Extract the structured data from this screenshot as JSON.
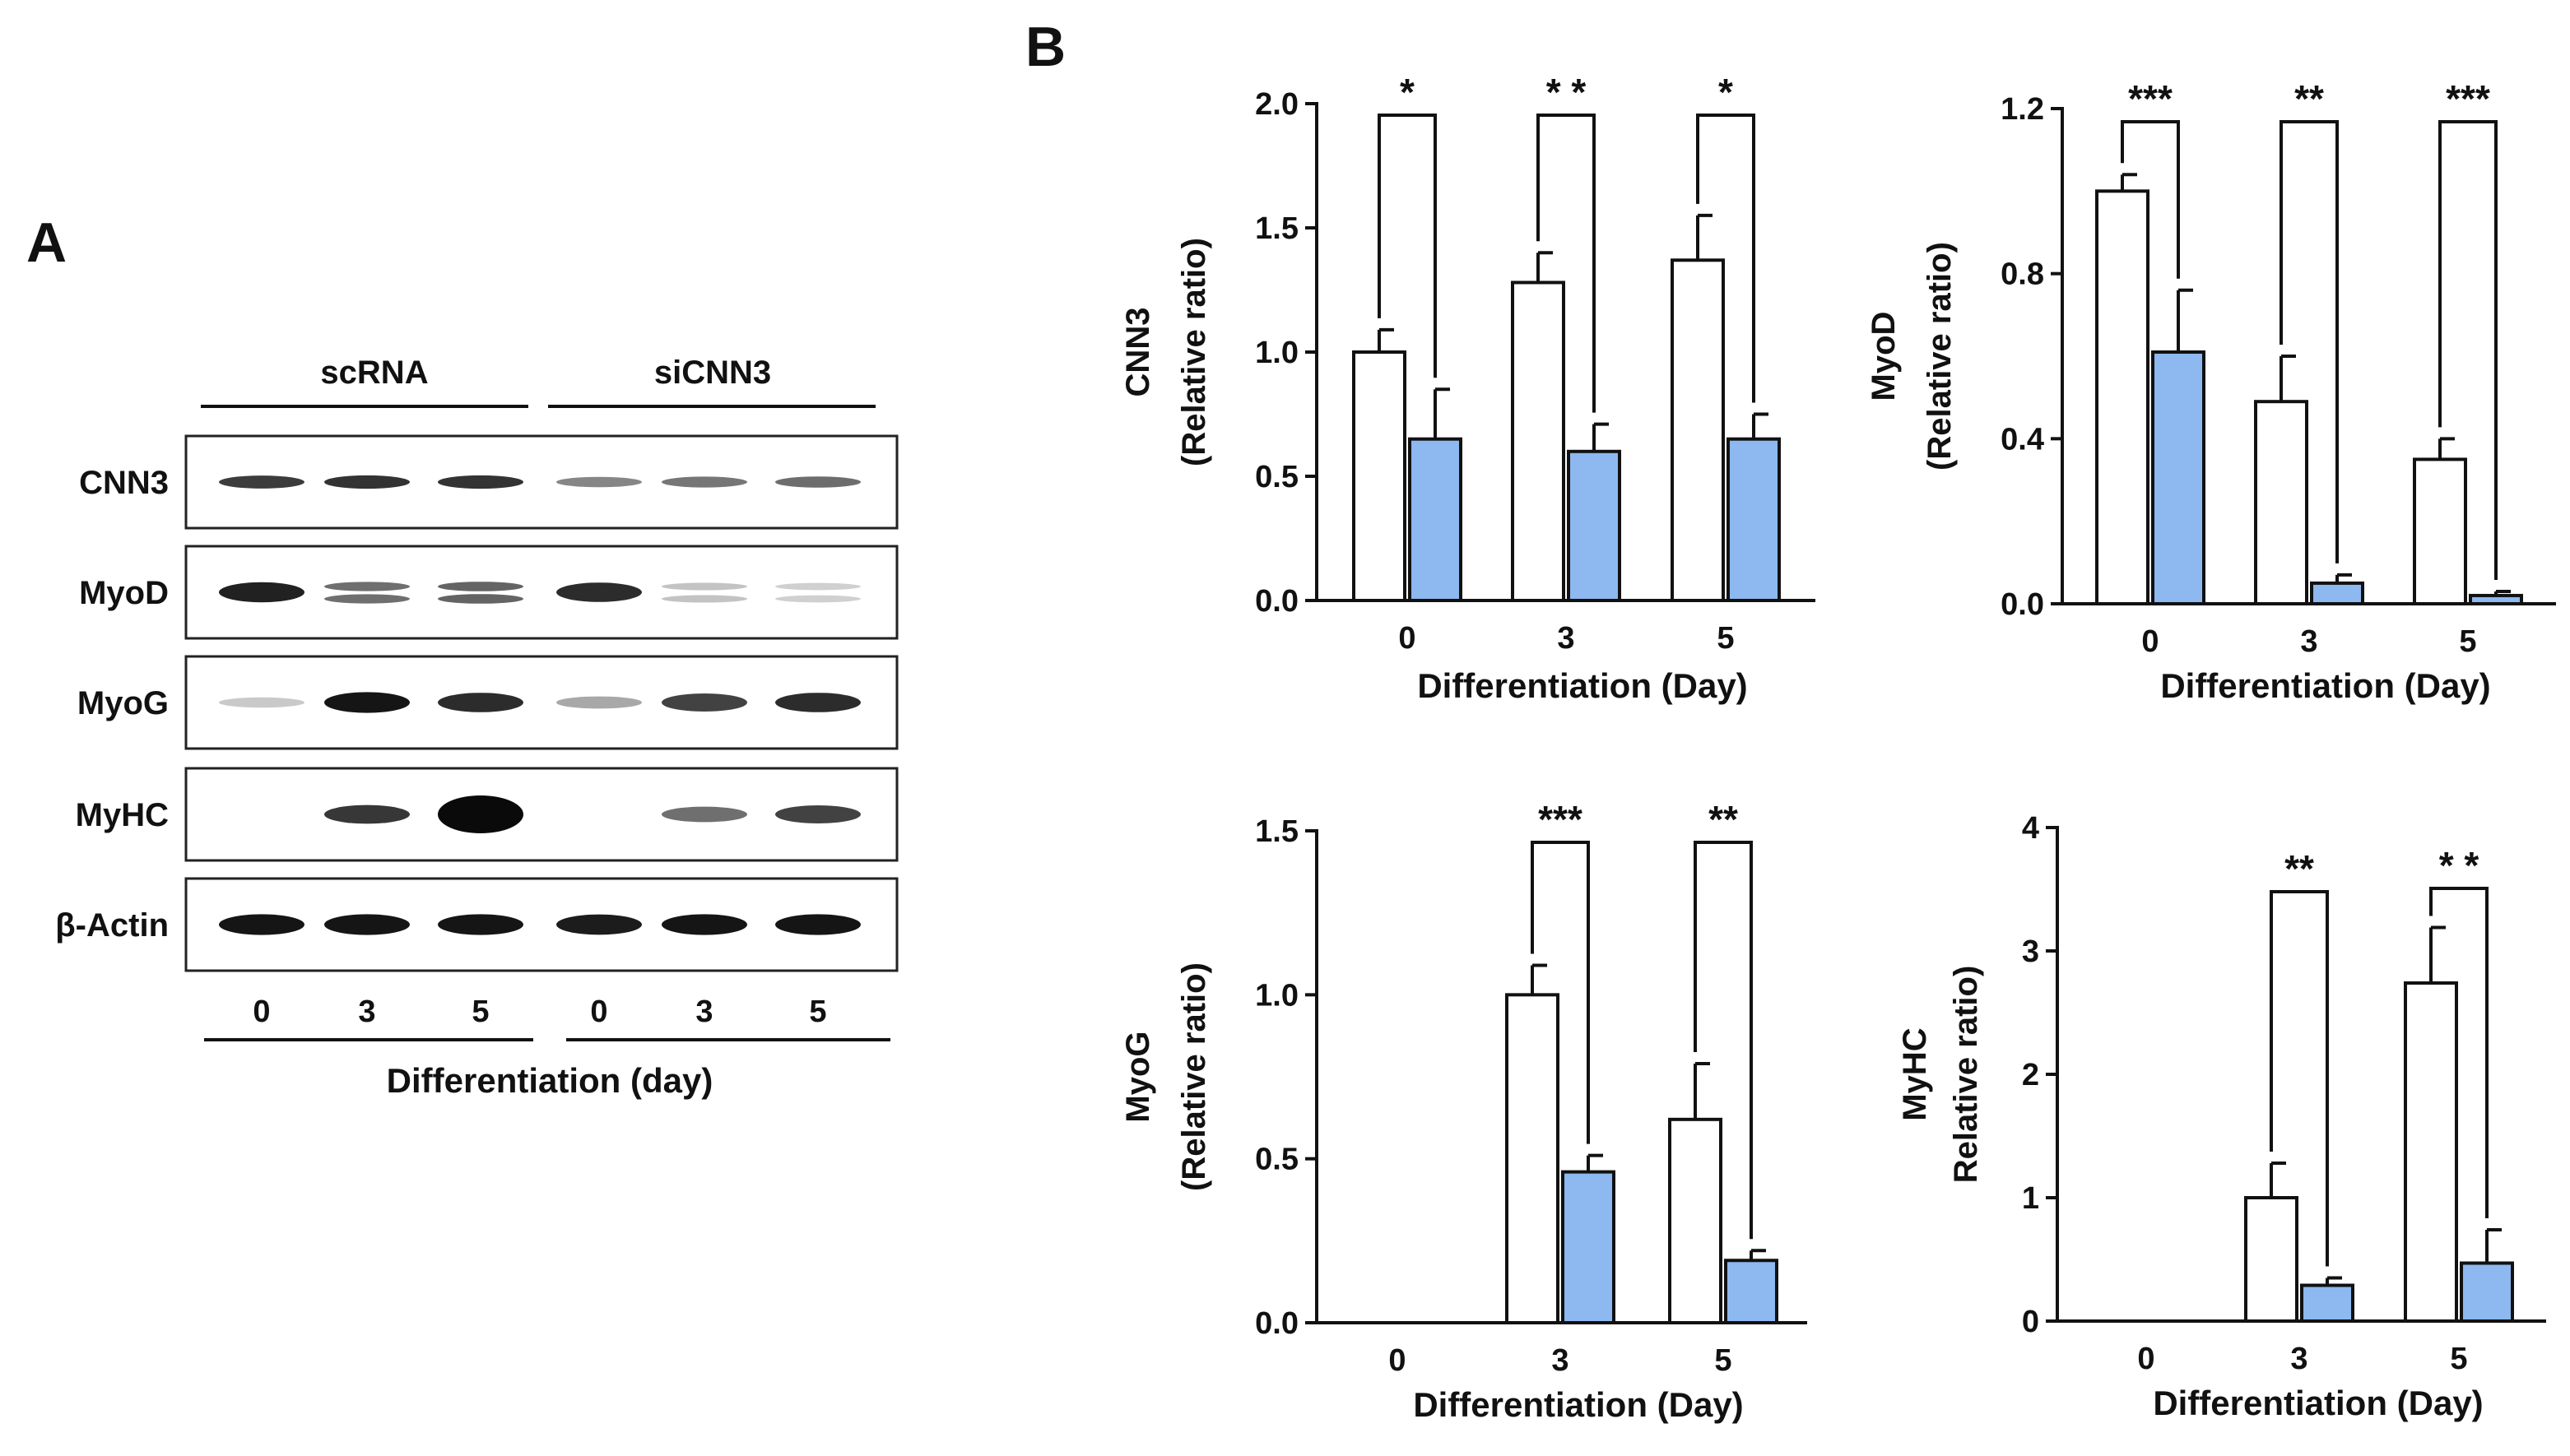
{
  "panel_a": {
    "letter": "A",
    "groups": [
      {
        "label": "scRNA"
      },
      {
        "label": "siCNN3"
      }
    ],
    "rows": [
      {
        "label": "CNN3",
        "bands": [
          0.78,
          0.82,
          0.82,
          0.45,
          0.52,
          0.56
        ],
        "shape": "thin"
      },
      {
        "label": "MyoD",
        "bands": [
          0.9,
          0.55,
          0.6,
          0.85,
          0.18,
          0.12
        ],
        "shape": "doublet"
      },
      {
        "label": "MyoG",
        "bands": [
          0.15,
          0.95,
          0.85,
          0.3,
          0.75,
          0.85
        ],
        "shape": "normal"
      },
      {
        "label": "MyHC",
        "bands": [
          0.0,
          0.8,
          1.0,
          0.0,
          0.55,
          0.75
        ],
        "shape": "normal"
      },
      {
        "label": "β-Actin",
        "bands": [
          0.95,
          0.95,
          0.95,
          0.92,
          0.95,
          0.95
        ],
        "shape": "normal"
      }
    ],
    "lanes": [
      "0",
      "3",
      "5",
      "0",
      "3",
      "5"
    ],
    "xlabel": "Differentiation (day)"
  },
  "panel_b": {
    "letter": "B"
  },
  "chart_data": [
    {
      "type": "bar",
      "ylabel_lines": [
        "CNN3",
        "(Relative ratio)"
      ],
      "xlabel": "Differentiation (Day)",
      "categories": [
        "0",
        "3",
        "5"
      ],
      "ylim": [
        0,
        2.0
      ],
      "yticks": [
        "0.0",
        "0.5",
        "1.0",
        "1.5",
        "2.0"
      ],
      "series": [
        {
          "values": [
            1.0,
            1.28,
            1.37
          ],
          "errors": [
            0.09,
            0.12,
            0.18
          ],
          "color": "#ffffff"
        },
        {
          "values": [
            0.65,
            0.6,
            0.65
          ],
          "errors": [
            0.2,
            0.11,
            0.1
          ],
          "color": "#8db8f0"
        }
      ],
      "significance": [
        "*",
        "* *",
        "*"
      ]
    },
    {
      "type": "bar",
      "ylabel_lines": [
        "MyoD",
        "(Relative ratio)"
      ],
      "xlabel": "Differentiation (Day)",
      "categories": [
        "0",
        "3",
        "5"
      ],
      "ylim": [
        0,
        1.2
      ],
      "yticks": [
        "0.0",
        "0.4",
        "0.8",
        "1.2"
      ],
      "series": [
        {
          "values": [
            1.0,
            0.49,
            0.35
          ],
          "errors": [
            0.04,
            0.11,
            0.05
          ],
          "color": "#ffffff"
        },
        {
          "values": [
            0.61,
            0.05,
            0.02
          ],
          "errors": [
            0.15,
            0.02,
            0.01
          ],
          "color": "#8db8f0"
        }
      ],
      "significance": [
        "***",
        "**",
        "***"
      ]
    },
    {
      "type": "bar",
      "ylabel_lines": [
        "MyoG",
        "(Relative ratio)"
      ],
      "xlabel": "Differentiation (Day)",
      "categories": [
        "0",
        "3",
        "5"
      ],
      "ylim": [
        0,
        1.5
      ],
      "yticks": [
        "0.0",
        "0.5",
        "1.0",
        "1.5"
      ],
      "series": [
        {
          "values": [
            0.0,
            1.0,
            0.62
          ],
          "errors": [
            0.0,
            0.09,
            0.17
          ],
          "color": "#ffffff"
        },
        {
          "values": [
            0.0,
            0.46,
            0.19
          ],
          "errors": [
            0.0,
            0.05,
            0.03
          ],
          "color": "#8db8f0"
        }
      ],
      "significance": [
        "",
        "***",
        "**"
      ]
    },
    {
      "type": "bar",
      "ylabel_lines": [
        "MyHC",
        "Relative ratio)"
      ],
      "xlabel": "Differentiation (Day)",
      "categories": [
        "0",
        "3",
        "5"
      ],
      "ylim": [
        0,
        4
      ],
      "yticks": [
        "0",
        "1",
        "2",
        "3",
        "4"
      ],
      "series": [
        {
          "values": [
            0.0,
            1.0,
            2.74
          ],
          "errors": [
            0.0,
            0.28,
            0.45
          ],
          "color": "#ffffff"
        },
        {
          "values": [
            0.0,
            0.29,
            0.47
          ],
          "errors": [
            0.0,
            0.06,
            0.27
          ],
          "color": "#8db8f0"
        }
      ],
      "significance": [
        "",
        "**",
        "* *"
      ]
    }
  ]
}
